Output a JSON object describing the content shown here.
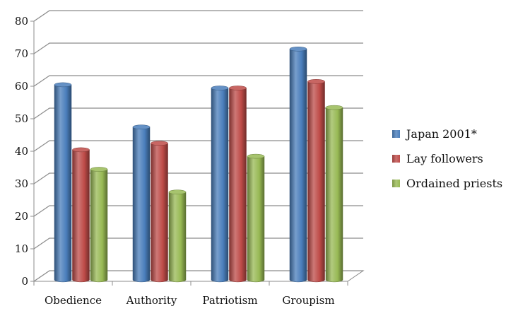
{
  "chart_data": {
    "type": "bar",
    "categories": [
      "Obedience",
      "Authority",
      "Patriotism",
      "Groupism"
    ],
    "series": [
      {
        "name": "Japan 2001*",
        "color": "#4a7ebb",
        "values": [
          60,
          47,
          59,
          71
        ]
      },
      {
        "name": "Lay followers",
        "color": "#be4b48",
        "values": [
          40,
          42,
          59,
          61
        ]
      },
      {
        "name": "Ordained priests",
        "color": "#98b954",
        "values": [
          34,
          27,
          38,
          53
        ]
      }
    ],
    "title": "",
    "xlabel": "",
    "ylabel": "",
    "ylim": [
      0,
      80
    ],
    "yticks": [
      0,
      10,
      20,
      30,
      40,
      50,
      60,
      70,
      80
    ],
    "grid": true,
    "legend_position": "right",
    "style": "3d-cylinder"
  }
}
